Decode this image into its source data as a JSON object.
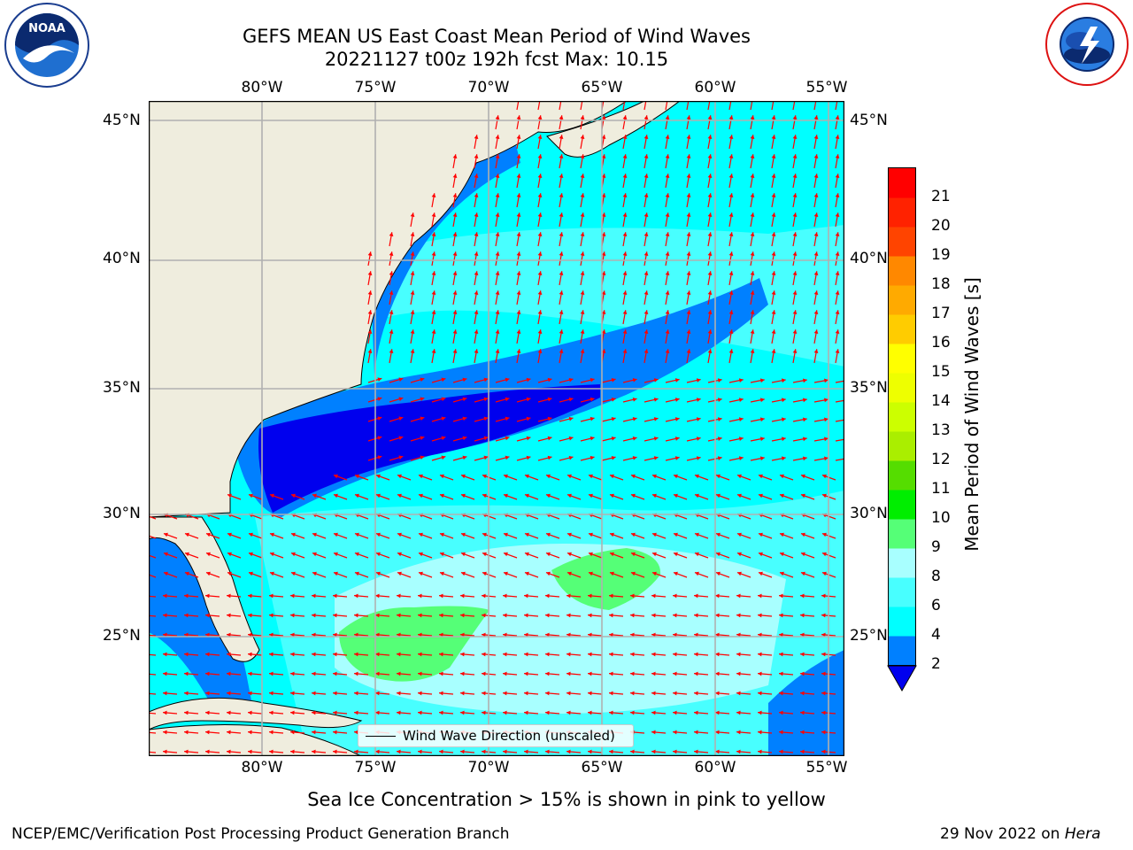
{
  "header": {
    "title_line1": "GEFS MEAN US East Coast Mean Period of Wind Waves",
    "title_line2": "20221127 t00z 192h fcst   Max: 10.15"
  },
  "logos": {
    "left": {
      "icon": "noaa-logo",
      "text": "NOAA",
      "ring_text": "NATIONAL OCEANIC AND ATMOSPHERIC ADMINISTRATION · U.S. DEPARTMENT OF COMMERCE"
    },
    "right": {
      "icon": "nws-logo",
      "ring_text": "NATIONAL WEATHER SERVICE"
    }
  },
  "map": {
    "lon_ticks": [
      "80°W",
      "75°W",
      "70°W",
      "65°W",
      "60°W",
      "55°W"
    ],
    "lat_ticks": [
      "45°N",
      "40°N",
      "35°N",
      "30°N",
      "25°N"
    ],
    "legend": "Wind Wave Direction (unscaled)",
    "arrow_color": "#ff0000",
    "land_color": "#efedde",
    "gridline_color": "#b0b0b0"
  },
  "colorbar": {
    "label": "Mean Period of Wind Waves [s]",
    "ticks": [
      "2",
      "4",
      "6",
      "8",
      "9",
      "10",
      "11",
      "12",
      "13",
      "14",
      "15",
      "16",
      "17",
      "18",
      "19",
      "20",
      "21"
    ],
    "colors": [
      "#0000ee",
      "#0080ff",
      "#00ffff",
      "#48ffff",
      "#a8ffff",
      "#55ff77",
      "#00ee00",
      "#55dd00",
      "#aaee00",
      "#ccff00",
      "#eeff00",
      "#ffff00",
      "#ffcc00",
      "#ffaa00",
      "#ff8800",
      "#ff4400",
      "#ff2200",
      "#ff0000"
    ]
  },
  "notes": {
    "sea_ice": "Sea Ice Concentration > 15% is shown in pink to yellow",
    "credit_left": "NCEP/EMC/Verification Post Processing Product Generation Branch",
    "credit_right_prefix": "29 Nov 2022 on ",
    "credit_right_machine": "Hera"
  }
}
